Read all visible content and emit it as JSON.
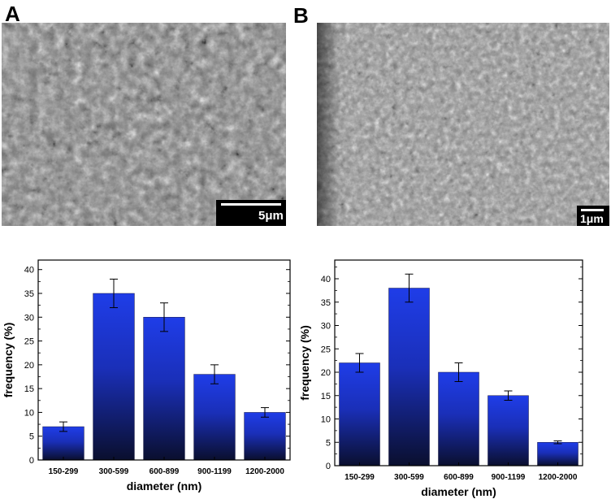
{
  "panels": {
    "a_label": "A",
    "b_label": "B",
    "a_scale": "5μm",
    "b_scale": "1μm"
  },
  "chart_data": [
    {
      "type": "bar",
      "categories": [
        "150-299",
        "300-599",
        "600-899",
        "900-1199",
        "1200-2000"
      ],
      "values": [
        7,
        35,
        30,
        18,
        10
      ],
      "errors": [
        1,
        3,
        3,
        2,
        1
      ],
      "xlabel": "diameter (nm)",
      "ylabel": "frequency (%)",
      "ylim": [
        0,
        42
      ],
      "yticks": [
        0,
        5,
        10,
        15,
        20,
        25,
        30,
        35,
        40
      ],
      "grid": false,
      "bar_color_top": "#1f3de8",
      "bar_color_bottom": "#0a0f2e"
    },
    {
      "type": "bar",
      "categories": [
        "150-299",
        "300-599",
        "600-899",
        "900-1199",
        "1200-2000"
      ],
      "values": [
        22,
        38,
        20,
        15,
        5
      ],
      "errors": [
        2,
        3,
        2,
        1,
        0.3
      ],
      "xlabel": "diameter (nm)",
      "ylabel": "frequency (%)",
      "ylim": [
        0,
        44
      ],
      "yticks": [
        0,
        5,
        10,
        15,
        20,
        25,
        30,
        35,
        40
      ],
      "grid": false,
      "bar_color_top": "#1f3de8",
      "bar_color_bottom": "#0a0f2e"
    }
  ]
}
